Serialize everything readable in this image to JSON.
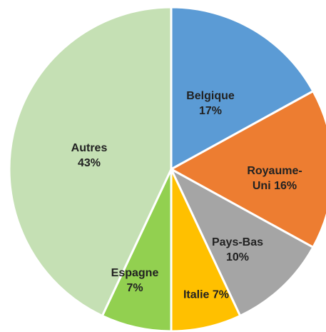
{
  "chart_data": {
    "type": "pie",
    "categories": [
      "Belgique",
      "Royaume-Uni",
      "Pays-Bas",
      "Italie",
      "Espagne",
      "Autres"
    ],
    "values": [
      17,
      16,
      10,
      7,
      7,
      43
    ],
    "value_labels": [
      "17%",
      "16%",
      "10%",
      "7%",
      "7%",
      "43%"
    ],
    "colors": [
      "#5b9bd5",
      "#ed7d31",
      "#a5a5a5",
      "#ffc000",
      "#92d050",
      "#c5e0b4"
    ]
  }
}
